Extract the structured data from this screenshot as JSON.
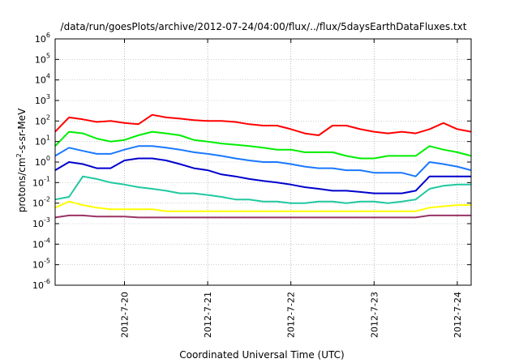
{
  "chart_data": {
    "type": "line",
    "title": "/data/run/goesPlots/archive/2012-07-24/04:00/flux/../flux/5daysEarthDataFluxes.txt",
    "xlabel": "Coordinated Universal Time (UTC)",
    "ylabel_main": "protons/cm",
    "ylabel_sup": "2",
    "ylabel_tail": "-s-sr-MeV",
    "yscale": "log",
    "ylim": [
      1e-06,
      1000000.0
    ],
    "y_tick_exponents": [
      -6,
      -5,
      -4,
      -3,
      -2,
      -1,
      0,
      1,
      2,
      3,
      4,
      5,
      6
    ],
    "y_tick_base": "10",
    "xlim": [
      "2012-07-19 04:00",
      "2012-07-24 04:00"
    ],
    "x_ticks": [
      "2012-7-20",
      "2012-7-21",
      "2012-7-22",
      "2012-7-23",
      "2012-7-24"
    ],
    "grid": true,
    "x_grid_style": "dotted",
    "x": [
      "2012-07-19 04:00",
      "2012-07-19 08:00",
      "2012-07-19 12:00",
      "2012-07-19 16:00",
      "2012-07-19 20:00",
      "2012-07-20 00:00",
      "2012-07-20 04:00",
      "2012-07-20 08:00",
      "2012-07-20 12:00",
      "2012-07-20 16:00",
      "2012-07-20 20:00",
      "2012-07-21 00:00",
      "2012-07-21 04:00",
      "2012-07-21 08:00",
      "2012-07-21 12:00",
      "2012-07-21 16:00",
      "2012-07-21 20:00",
      "2012-07-22 00:00",
      "2012-07-22 04:00",
      "2012-07-22 08:00",
      "2012-07-22 12:00",
      "2012-07-22 16:00",
      "2012-07-22 20:00",
      "2012-07-23 00:00",
      "2012-07-23 04:00",
      "2012-07-23 08:00",
      "2012-07-23 12:00",
      "2012-07-23 16:00",
      "2012-07-23 20:00",
      "2012-07-24 00:00",
      "2012-07-24 04:00"
    ],
    "series": [
      {
        "color": "#ff0000",
        "values": [
          30,
          150,
          120,
          90,
          100,
          80,
          70,
          200,
          150,
          130,
          110,
          100,
          100,
          90,
          70,
          60,
          60,
          40,
          25,
          20,
          60,
          60,
          40,
          30,
          25,
          30,
          25,
          40,
          80,
          40,
          30
        ]
      },
      {
        "color": "#00ee00",
        "values": [
          6,
          30,
          25,
          14,
          10,
          12,
          20,
          30,
          25,
          20,
          12,
          10,
          8,
          7,
          6,
          5,
          4,
          4,
          3,
          3,
          3,
          2,
          1.5,
          1.5,
          2,
          2,
          2,
          6,
          4,
          3,
          2
        ]
      },
      {
        "color": "#1a78ff",
        "values": [
          2,
          5,
          3.5,
          2.5,
          2.5,
          4,
          6,
          6,
          5,
          4,
          3,
          2.5,
          2,
          1.5,
          1.2,
          1,
          1,
          0.8,
          0.6,
          0.5,
          0.5,
          0.4,
          0.4,
          0.3,
          0.3,
          0.3,
          0.2,
          1,
          0.8,
          0.6,
          0.4
        ]
      },
      {
        "color": "#0000cc",
        "values": [
          0.4,
          1,
          0.8,
          0.5,
          0.5,
          1.2,
          1.5,
          1.5,
          1.2,
          0.8,
          0.5,
          0.4,
          0.25,
          0.2,
          0.15,
          0.12,
          0.1,
          0.08,
          0.06,
          0.05,
          0.04,
          0.04,
          0.035,
          0.03,
          0.03,
          0.03,
          0.04,
          0.2,
          0.2,
          0.2,
          0.2
        ]
      },
      {
        "color": "#20c8a0",
        "values": [
          0.015,
          0.02,
          0.2,
          0.15,
          0.1,
          0.08,
          0.06,
          0.05,
          0.04,
          0.03,
          0.03,
          0.025,
          0.02,
          0.015,
          0.015,
          0.012,
          0.012,
          0.01,
          0.01,
          0.012,
          0.012,
          0.01,
          0.012,
          0.012,
          0.01,
          0.012,
          0.015,
          0.05,
          0.07,
          0.08,
          0.08
        ]
      },
      {
        "color": "#ffff00",
        "values": [
          0.006,
          0.012,
          0.008,
          0.006,
          0.005,
          0.005,
          0.005,
          0.005,
          0.004,
          0.004,
          0.004,
          0.004,
          0.004,
          0.004,
          0.004,
          0.004,
          0.004,
          0.004,
          0.004,
          0.004,
          0.004,
          0.004,
          0.004,
          0.004,
          0.004,
          0.004,
          0.004,
          0.006,
          0.007,
          0.008,
          0.008
        ]
      },
      {
        "color": "#993366",
        "values": [
          0.002,
          0.0025,
          0.0025,
          0.0022,
          0.0022,
          0.0022,
          0.002,
          0.002,
          0.002,
          0.002,
          0.002,
          0.002,
          0.002,
          0.002,
          0.002,
          0.002,
          0.002,
          0.002,
          0.002,
          0.002,
          0.002,
          0.002,
          0.002,
          0.002,
          0.002,
          0.002,
          0.002,
          0.0025,
          0.0025,
          0.0025,
          0.0025
        ]
      }
    ]
  }
}
